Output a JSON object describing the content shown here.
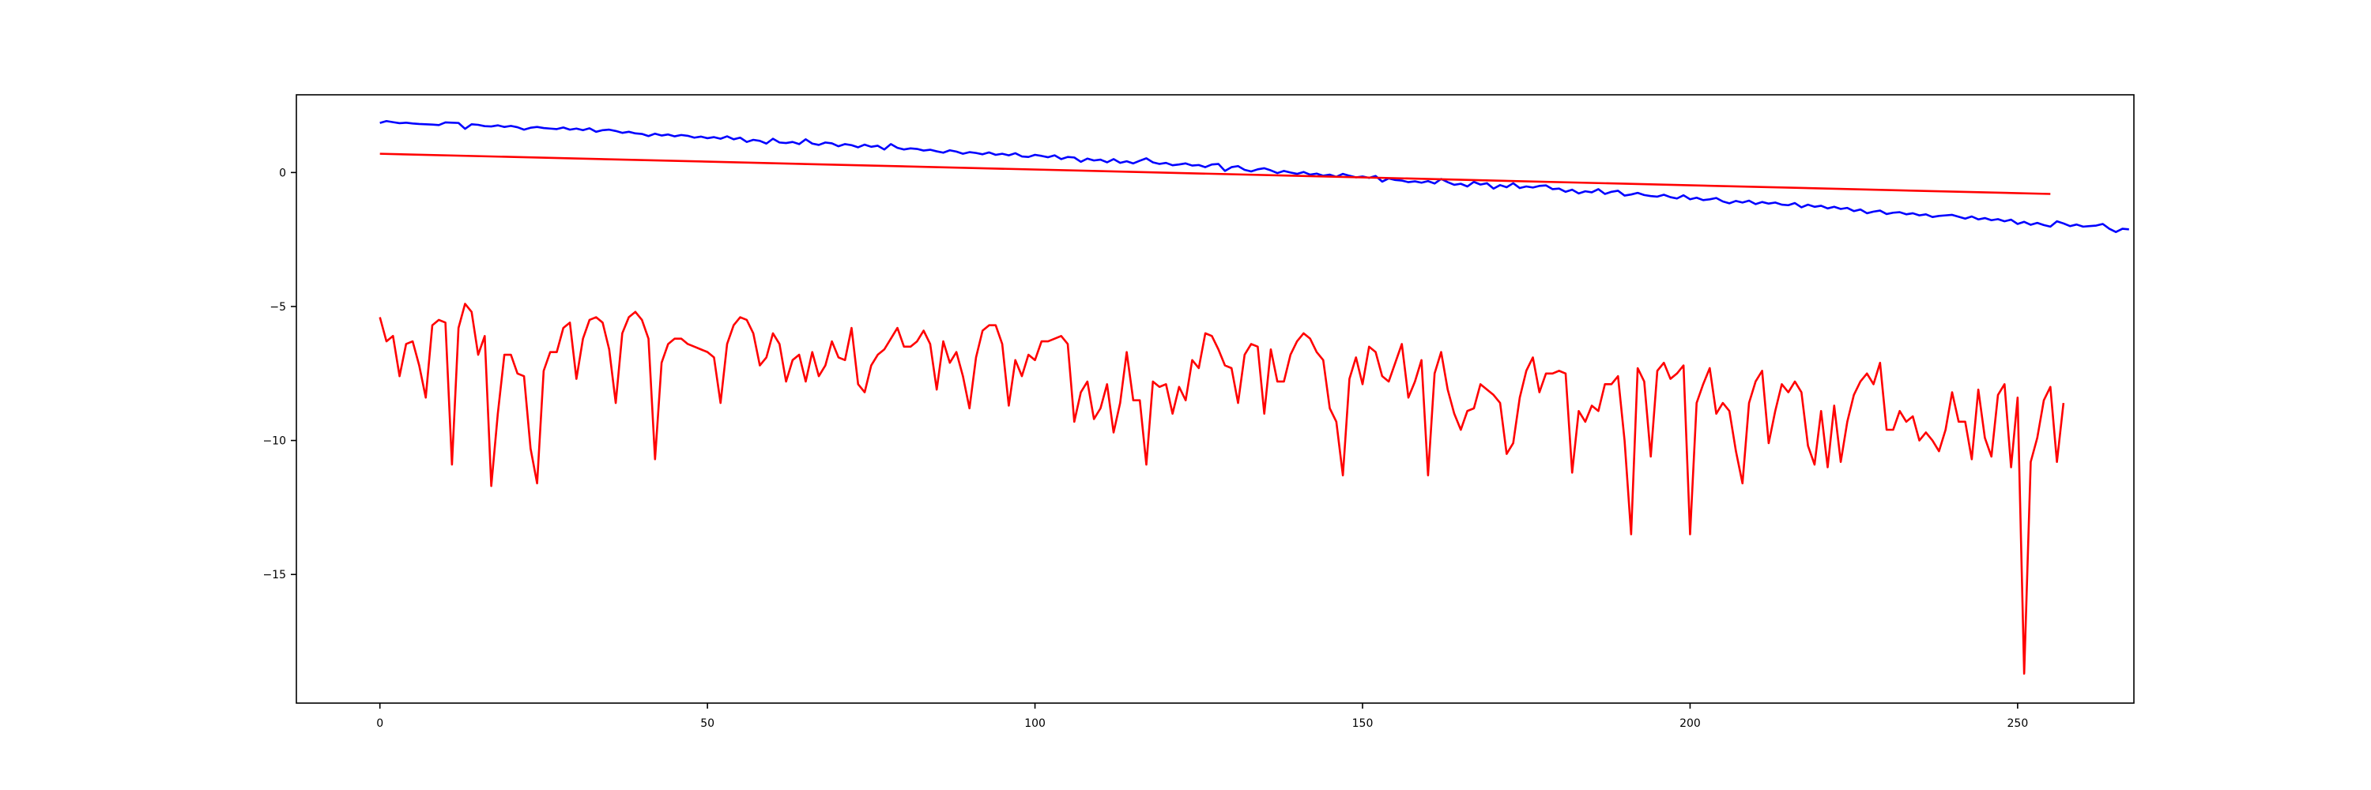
{
  "chart_data": {
    "type": "line",
    "xlim": [
      -12.75,
      267.75
    ],
    "ylim": [
      -19.8,
      2.9
    ],
    "xticks": [
      0,
      50,
      100,
      150,
      200,
      250
    ],
    "yticks": [
      0,
      -5,
      -10,
      -15
    ],
    "xtick_labels": [
      "0",
      "50",
      "100",
      "150",
      "200",
      "250"
    ],
    "ytick_labels": [
      "0",
      "−5",
      "−10",
      "−15"
    ],
    "grid": false,
    "series": [
      {
        "color": "#0000ff",
        "x_start": 0,
        "x_step": 1,
        "values": [
          1.85,
          1.92,
          1.88,
          1.84,
          1.86,
          1.83,
          1.81,
          1.8,
          1.79,
          1.77,
          1.87,
          1.86,
          1.85,
          1.63,
          1.8,
          1.78,
          1.73,
          1.72,
          1.76,
          1.7,
          1.74,
          1.69,
          1.6,
          1.67,
          1.7,
          1.66,
          1.64,
          1.62,
          1.68,
          1.6,
          1.64,
          1.58,
          1.65,
          1.52,
          1.58,
          1.6,
          1.55,
          1.48,
          1.52,
          1.46,
          1.44,
          1.36,
          1.45,
          1.38,
          1.42,
          1.35,
          1.4,
          1.37,
          1.3,
          1.34,
          1.28,
          1.32,
          1.26,
          1.35,
          1.24,
          1.3,
          1.14,
          1.22,
          1.18,
          1.08,
          1.26,
          1.12,
          1.1,
          1.14,
          1.06,
          1.24,
          1.08,
          1.03,
          1.12,
          1.09,
          0.98,
          1.06,
          1.02,
          0.94,
          1.04,
          0.96,
          1.0,
          0.86,
          1.06,
          0.92,
          0.86,
          0.9,
          0.88,
          0.82,
          0.85,
          0.79,
          0.74,
          0.83,
          0.78,
          0.7,
          0.76,
          0.73,
          0.68,
          0.75,
          0.66,
          0.7,
          0.64,
          0.72,
          0.6,
          0.58,
          0.66,
          0.62,
          0.57,
          0.64,
          0.5,
          0.58,
          0.56,
          0.4,
          0.52,
          0.45,
          0.48,
          0.38,
          0.5,
          0.36,
          0.42,
          0.34,
          0.44,
          0.53,
          0.38,
          0.32,
          0.36,
          0.27,
          0.3,
          0.34,
          0.26,
          0.28,
          0.2,
          0.3,
          0.32,
          0.06,
          0.2,
          0.24,
          0.1,
          0.04,
          0.12,
          0.16,
          0.08,
          -0.02,
          0.06,
          0.0,
          -0.05,
          0.02,
          -0.08,
          -0.04,
          -0.12,
          -0.08,
          -0.16,
          -0.05,
          -0.12,
          -0.18,
          -0.15,
          -0.2,
          -0.13,
          -0.34,
          -0.22,
          -0.28,
          -0.3,
          -0.36,
          -0.33,
          -0.38,
          -0.32,
          -0.41,
          -0.24,
          -0.36,
          -0.46,
          -0.42,
          -0.52,
          -0.35,
          -0.45,
          -0.4,
          -0.6,
          -0.47,
          -0.55,
          -0.4,
          -0.58,
          -0.52,
          -0.56,
          -0.5,
          -0.48,
          -0.62,
          -0.6,
          -0.72,
          -0.64,
          -0.78,
          -0.7,
          -0.74,
          -0.62,
          -0.8,
          -0.72,
          -0.68,
          -0.86,
          -0.82,
          -0.76,
          -0.84,
          -0.88,
          -0.9,
          -0.83,
          -0.92,
          -0.97,
          -0.85,
          -1.0,
          -0.94,
          -1.03,
          -1.0,
          -0.95,
          -1.08,
          -1.15,
          -1.06,
          -1.12,
          -1.05,
          -1.18,
          -1.1,
          -1.16,
          -1.12,
          -1.2,
          -1.22,
          -1.14,
          -1.3,
          -1.2,
          -1.28,
          -1.24,
          -1.34,
          -1.28,
          -1.36,
          -1.32,
          -1.44,
          -1.38,
          -1.52,
          -1.46,
          -1.42,
          -1.55,
          -1.5,
          -1.48,
          -1.56,
          -1.52,
          -1.6,
          -1.56,
          -1.66,
          -1.62,
          -1.6,
          -1.58,
          -1.65,
          -1.72,
          -1.64,
          -1.75,
          -1.7,
          -1.78,
          -1.74,
          -1.82,
          -1.76,
          -1.92,
          -1.84,
          -1.95,
          -1.88,
          -1.96,
          -2.02,
          -1.82,
          -1.9,
          -2.0,
          -1.94,
          -2.02,
          -2.0,
          -1.98,
          -1.92,
          -2.1,
          -2.22,
          -2.1,
          -2.12
        ]
      },
      {
        "color": "#ff0000",
        "x": [
          0,
          255
        ],
        "values": [
          0.7,
          -0.8
        ]
      },
      {
        "color": "#ff0000",
        "x_start": 0,
        "x_step": 1,
        "values": [
          -5.4,
          -6.3,
          -6.1,
          -7.6,
          -6.4,
          -6.3,
          -7.2,
          -8.4,
          -5.7,
          -5.5,
          -5.6,
          -10.9,
          -5.8,
          -4.9,
          -5.2,
          -6.8,
          -6.1,
          -11.7,
          -9.0,
          -6.8,
          -6.8,
          -7.5,
          -7.6,
          -10.3,
          -11.6,
          -7.4,
          -6.7,
          -6.7,
          -5.8,
          -5.6,
          -7.7,
          -6.2,
          -5.5,
          -5.4,
          -5.6,
          -6.6,
          -8.6,
          -6.0,
          -5.4,
          -5.2,
          -5.5,
          -6.2,
          -10.7,
          -7.1,
          -6.4,
          -6.2,
          -6.2,
          -6.4,
          -6.5,
          -6.6,
          -6.7,
          -6.9,
          -8.6,
          -6.4,
          -5.7,
          -5.4,
          -5.5,
          -6.0,
          -7.2,
          -6.9,
          -6.0,
          -6.4,
          -7.8,
          -7.0,
          -6.8,
          -7.8,
          -6.7,
          -7.6,
          -7.2,
          -6.3,
          -6.9,
          -7.0,
          -5.8,
          -7.9,
          -8.2,
          -7.2,
          -6.8,
          -6.6,
          -6.2,
          -5.8,
          -6.5,
          -6.5,
          -6.3,
          -5.9,
          -6.4,
          -8.1,
          -6.3,
          -7.1,
          -6.7,
          -7.6,
          -8.8,
          -6.9,
          -5.9,
          -5.7,
          -5.7,
          -6.4,
          -8.7,
          -7.0,
          -7.6,
          -6.8,
          -7.0,
          -6.3,
          -6.3,
          -6.2,
          -6.1,
          -6.4,
          -9.3,
          -8.2,
          -7.8,
          -9.2,
          -8.8,
          -7.9,
          -9.7,
          -8.6,
          -6.7,
          -8.5,
          -8.5,
          -10.9,
          -7.8,
          -8.0,
          -7.9,
          -9.0,
          -8.0,
          -8.5,
          -7.0,
          -7.3,
          -6.0,
          -6.1,
          -6.6,
          -7.2,
          -7.3,
          -8.6,
          -6.8,
          -6.4,
          -6.5,
          -9.0,
          -6.6,
          -7.8,
          -7.8,
          -6.8,
          -6.3,
          -6.0,
          -6.2,
          -6.7,
          -7.0,
          -8.8,
          -9.3,
          -11.3,
          -7.7,
          -6.9,
          -7.9,
          -6.5,
          -6.7,
          -7.6,
          -7.8,
          -7.1,
          -6.4,
          -8.4,
          -7.8,
          -7.0,
          -11.3,
          -7.5,
          -6.7,
          -8.1,
          -9.0,
          -9.6,
          -8.9,
          -8.8,
          -7.9,
          -8.1,
          -8.3,
          -8.6,
          -10.5,
          -10.1,
          -8.4,
          -7.4,
          -6.9,
          -8.2,
          -7.5,
          -7.5,
          -7.4,
          -7.5,
          -11.2,
          -8.9,
          -9.3,
          -8.7,
          -8.9,
          -7.9,
          -7.9,
          -7.6,
          -10.0,
          -13.5,
          -7.3,
          -7.8,
          -10.6,
          -7.4,
          -7.1,
          -7.7,
          -7.5,
          -7.2,
          -13.5,
          -8.6,
          -7.9,
          -7.3,
          -9.0,
          -8.6,
          -8.9,
          -10.4,
          -11.6,
          -8.6,
          -7.8,
          -7.4,
          -10.1,
          -8.9,
          -7.9,
          -8.2,
          -7.8,
          -8.2,
          -10.2,
          -10.9,
          -8.9,
          -11.0,
          -8.7,
          -10.8,
          -9.3,
          -8.3,
          -7.8,
          -7.5,
          -7.9,
          -7.1,
          -9.6,
          -9.6,
          -8.9,
          -9.3,
          -9.1,
          -10.0,
          -9.7,
          -10.0,
          -10.4,
          -9.6,
          -8.2,
          -9.3,
          -9.3,
          -10.7,
          -8.1,
          -9.9,
          -10.6,
          -8.3,
          -7.9,
          -11.0,
          -8.4,
          -18.7,
          -10.8,
          -9.9,
          -8.5,
          -8.0,
          -10.8,
          -8.6
        ]
      }
    ]
  }
}
